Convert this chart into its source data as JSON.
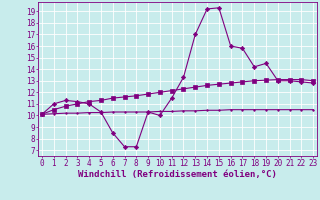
{
  "xlabel": "Windchill (Refroidissement éolien,°C)",
  "x_ticks": [
    0,
    1,
    2,
    3,
    4,
    5,
    6,
    7,
    8,
    9,
    10,
    11,
    12,
    13,
    14,
    15,
    16,
    17,
    18,
    19,
    20,
    21,
    22,
    23
  ],
  "y_ticks": [
    7,
    8,
    9,
    10,
    11,
    12,
    13,
    14,
    15,
    16,
    17,
    18,
    19
  ],
  "xlim": [
    -0.3,
    23.3
  ],
  "ylim": [
    6.5,
    19.8
  ],
  "line1_x": [
    0,
    1,
    2,
    3,
    4,
    5,
    6,
    7,
    8,
    9,
    10,
    11,
    12,
    13,
    14,
    15,
    16,
    17,
    18,
    19,
    20,
    21,
    22,
    23
  ],
  "line1_y": [
    10.1,
    11.0,
    11.3,
    11.2,
    11.0,
    10.3,
    8.5,
    7.3,
    7.3,
    10.3,
    10.0,
    11.5,
    13.3,
    17.0,
    19.2,
    19.3,
    16.0,
    15.8,
    14.2,
    14.5,
    13.0,
    13.0,
    12.9,
    12.8
  ],
  "line2_x": [
    0,
    1,
    2,
    3,
    4,
    5,
    6,
    7,
    8,
    9,
    10,
    11,
    12,
    13,
    14,
    15,
    16,
    17,
    18,
    19,
    20,
    21,
    22,
    23
  ],
  "line2_y": [
    10.1,
    10.5,
    10.8,
    11.0,
    11.2,
    11.3,
    11.5,
    11.6,
    11.7,
    11.85,
    12.0,
    12.15,
    12.3,
    12.45,
    12.6,
    12.7,
    12.8,
    12.9,
    13.0,
    13.05,
    13.1,
    13.1,
    13.1,
    13.0
  ],
  "line3_x": [
    0,
    1,
    2,
    3,
    4,
    5,
    6,
    7,
    8,
    9,
    10,
    11,
    12,
    13,
    14,
    15,
    16,
    17,
    18,
    19,
    20,
    21,
    22,
    23
  ],
  "line3_y": [
    10.1,
    10.15,
    10.2,
    10.2,
    10.25,
    10.25,
    10.3,
    10.3,
    10.3,
    10.3,
    10.35,
    10.35,
    10.4,
    10.4,
    10.45,
    10.45,
    10.5,
    10.5,
    10.5,
    10.5,
    10.5,
    10.5,
    10.5,
    10.5
  ],
  "line_color": "#800080",
  "bg_color": "#c8ecec",
  "grid_color": "#b0d8d8",
  "axis_color": "#800080",
  "label_fontsize": 6.5,
  "tick_fontsize": 5.5
}
